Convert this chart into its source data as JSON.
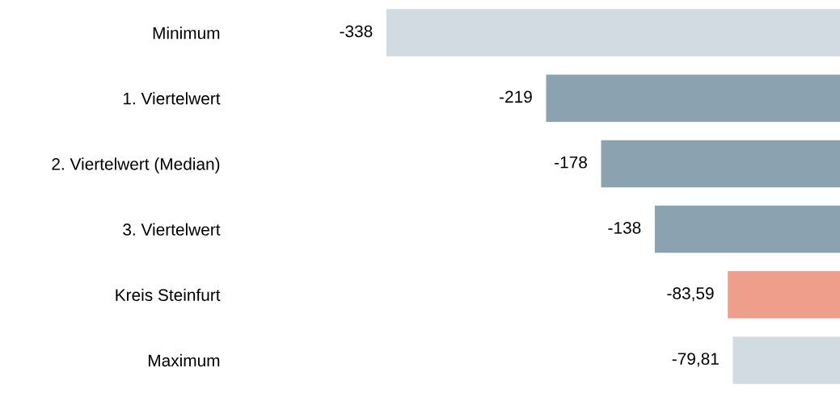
{
  "chart_data": {
    "type": "bar",
    "orientation": "horizontal",
    "categories": [
      "Minimum",
      "1. Viertelwert",
      "2. Viertelwert (Median)",
      "3. Viertelwert",
      "Kreis Steinfurt",
      "Maximum"
    ],
    "values": [
      -338,
      -219,
      -178,
      -138,
      -83.59,
      -79.81
    ],
    "colors": [
      "#d3dbe2",
      "#8ba3b0",
      "#8ba3b0",
      "#8ba3b0",
      "#f09e8c",
      "#d3dbe2"
    ],
    "value_labels": [
      "-338",
      "-219",
      "-178",
      "-138",
      "-83,59",
      "-79,81"
    ],
    "tick_labels": "y",
    "grid": false,
    "legend": false
  }
}
